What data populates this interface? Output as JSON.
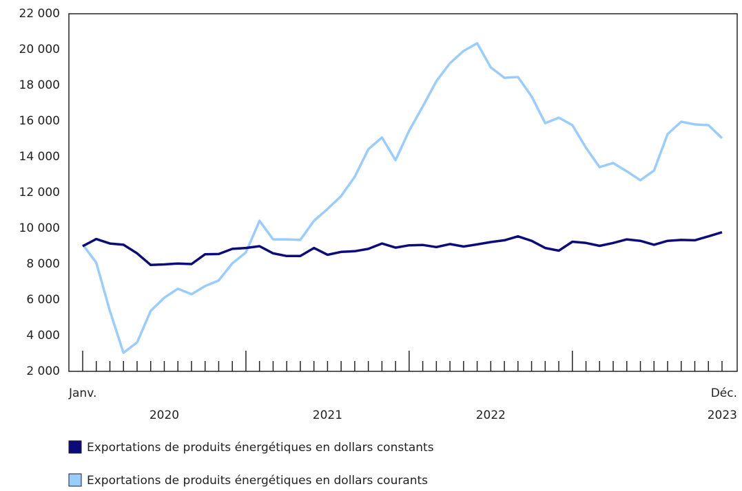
{
  "chart_data": {
    "type": "line",
    "categories": [
      "Janv.",
      null,
      null,
      null,
      null,
      null,
      null,
      null,
      null,
      null,
      null,
      null,
      null,
      null,
      null,
      null,
      null,
      null,
      null,
      null,
      null,
      null,
      null,
      null,
      null,
      null,
      null,
      null,
      null,
      null,
      null,
      null,
      null,
      null,
      null,
      null,
      null,
      null,
      null,
      null,
      null,
      null,
      null,
      null,
      null,
      null,
      null,
      "Déc."
    ],
    "years": [
      "2020",
      "2021",
      "2022",
      "2023"
    ],
    "series": [
      {
        "name": "Exportations de produits énergétiques en dollars constants",
        "color": "#0b0b7a",
        "values": [
          9000,
          9400,
          9150,
          9080,
          8600,
          7950,
          7980,
          8030,
          8000,
          8550,
          8560,
          8850,
          8900,
          9000,
          8600,
          8450,
          8450,
          8900,
          8520,
          8680,
          8720,
          8850,
          9150,
          8920,
          9050,
          9070,
          8950,
          9120,
          8980,
          9100,
          9230,
          9330,
          9550,
          9300,
          8900,
          8750,
          9250,
          9180,
          9020,
          9180,
          9380,
          9300,
          9080,
          9300,
          9350,
          9330,
          9550,
          9780
        ]
      },
      {
        "name": "Exportations de produits énergétiques en dollars courants",
        "color": "#99ccff",
        "values": [
          9100,
          8080,
          5380,
          3040,
          3620,
          5380,
          6120,
          6620,
          6310,
          6770,
          7080,
          8040,
          8650,
          10420,
          9380,
          9380,
          9350,
          10420,
          11080,
          11800,
          12880,
          14420,
          15080,
          13810,
          15460,
          16810,
          18230,
          19230,
          19920,
          20350,
          19000,
          18420,
          18460,
          17380,
          15880,
          16190,
          15770,
          14500,
          13420,
          13650,
          13190,
          12690,
          13230,
          15270,
          15960,
          15810,
          15770,
          15040
        ]
      }
    ],
    "ylim": [
      2000,
      22000
    ],
    "yticks": [
      {
        "value": 2000,
        "label": "2 000"
      },
      {
        "value": 4000,
        "label": "4 000"
      },
      {
        "value": 6000,
        "label": "6 000"
      },
      {
        "value": 8000,
        "label": "8 000"
      },
      {
        "value": 10000,
        "label": "10 000"
      },
      {
        "value": 12000,
        "label": "12 000"
      },
      {
        "value": 14000,
        "label": "14 000"
      },
      {
        "value": 16000,
        "label": "16 000"
      },
      {
        "value": 18000,
        "label": "18 000"
      },
      {
        "value": 20000,
        "label": "20 000"
      },
      {
        "value": 22000,
        "label": "22 000"
      }
    ],
    "grid": false
  }
}
